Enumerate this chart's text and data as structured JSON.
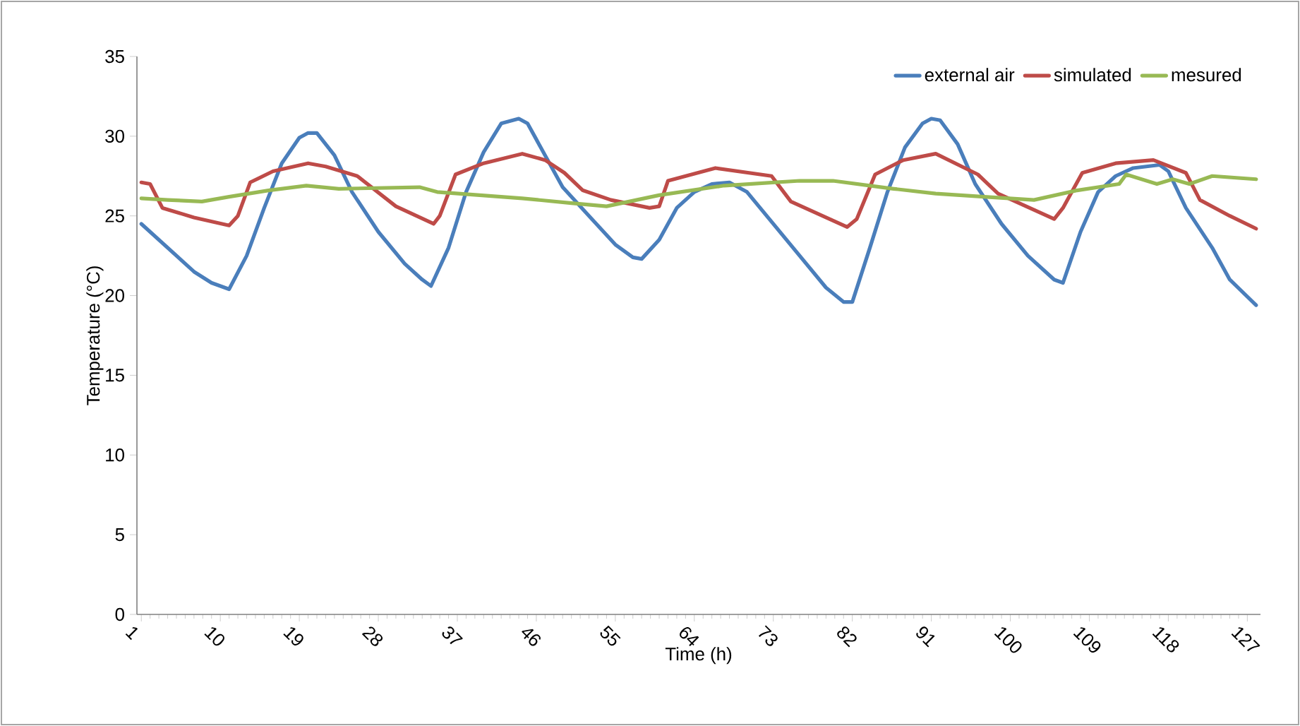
{
  "chart_data": {
    "type": "line",
    "xlabel": "Time (h)",
    "ylabel": "Temperature (°C)",
    "xlim": [
      0.5,
      128.5
    ],
    "xticks": [
      1,
      10,
      19,
      28,
      37,
      46,
      55,
      64,
      73,
      82,
      91,
      100,
      109,
      118,
      127
    ],
    "ylim": [
      0,
      35
    ],
    "yticks": [
      0,
      5,
      10,
      15,
      20,
      25,
      30,
      35
    ],
    "legend": "top right",
    "grid": false,
    "marker": "none",
    "line_style": "solid",
    "series": [
      {
        "name": "external air",
        "color": "#4a7ebb",
        "x": [
          1,
          3,
          5,
          7,
          9,
          11,
          13,
          15,
          17,
          19,
          20,
          21,
          23,
          25,
          28,
          31,
          33,
          34,
          36,
          38,
          40,
          42,
          44,
          45,
          47,
          49,
          52,
          55,
          57,
          58,
          60,
          62,
          64,
          66,
          68,
          70,
          73,
          76,
          79,
          81,
          82,
          84,
          86,
          88,
          90,
          91,
          92,
          94,
          96,
          99,
          102,
          105,
          106,
          108,
          110,
          112,
          114,
          117,
          118,
          120,
          123,
          125,
          128
        ],
        "values": [
          24.5,
          23.5,
          22.5,
          21.5,
          20.8,
          20.4,
          22.5,
          25.5,
          28.3,
          29.9,
          30.2,
          30.2,
          28.8,
          26.5,
          24.0,
          22.0,
          21.0,
          20.6,
          23.0,
          26.5,
          29.0,
          30.8,
          31.1,
          30.8,
          28.8,
          26.8,
          25.0,
          23.2,
          22.4,
          22.3,
          23.5,
          25.5,
          26.5,
          27.0,
          27.1,
          26.5,
          24.5,
          22.5,
          20.5,
          19.6,
          19.6,
          23.0,
          26.5,
          29.3,
          30.8,
          31.1,
          31.0,
          29.5,
          27.0,
          24.5,
          22.5,
          21.0,
          20.8,
          24.0,
          26.5,
          27.5,
          28.0,
          28.2,
          27.8,
          25.5,
          23.0,
          21.0,
          19.4
        ]
      },
      {
        "name": "simulated",
        "color": "#be4b48",
        "x": [
          1,
          2,
          3.4,
          7,
          11,
          12,
          13.4,
          16,
          20,
          22,
          25.6,
          30,
          34.3,
          35,
          36.8,
          40,
          44.4,
          47,
          49.2,
          51.3,
          54.5,
          58.9,
          60,
          61,
          66.4,
          72.8,
          75,
          81.4,
          82.5,
          84.6,
          87.8,
          91.5,
          96.3,
          98.6,
          105,
          106,
          108.2,
          112,
          116.3,
          120,
          121.6,
          125,
          128
        ],
        "values": [
          27.1,
          27.0,
          25.5,
          24.9,
          24.4,
          25.0,
          27.1,
          27.8,
          28.3,
          28.1,
          27.5,
          25.6,
          24.5,
          25.0,
          27.6,
          28.3,
          28.9,
          28.5,
          27.7,
          26.6,
          26.0,
          25.5,
          25.6,
          27.2,
          28.0,
          27.5,
          25.9,
          24.3,
          24.8,
          27.6,
          28.5,
          28.9,
          27.6,
          26.4,
          24.8,
          25.5,
          27.7,
          28.3,
          28.5,
          27.7,
          26.0,
          25.0,
          24.2
        ]
      },
      {
        "name": "mesured",
        "color": "#98b954",
        "x": [
          1,
          4,
          7.9,
          11,
          15.5,
          19.8,
          23.5,
          32.7,
          34.7,
          44.4,
          50,
          54,
          60,
          67.4,
          76,
          79.8,
          86.7,
          91.5,
          97,
          102.7,
          107.6,
          112.4,
          113.2,
          116.7,
          118.5,
          120.4,
          123,
          128
        ],
        "values": [
          26.1,
          26.0,
          25.9,
          26.2,
          26.6,
          26.9,
          26.7,
          26.8,
          26.5,
          26.1,
          25.8,
          25.6,
          26.3,
          26.9,
          27.2,
          27.2,
          26.7,
          26.4,
          26.2,
          26.0,
          26.6,
          27.0,
          27.6,
          27.0,
          27.3,
          27.0,
          27.5,
          27.3
        ]
      }
    ]
  }
}
